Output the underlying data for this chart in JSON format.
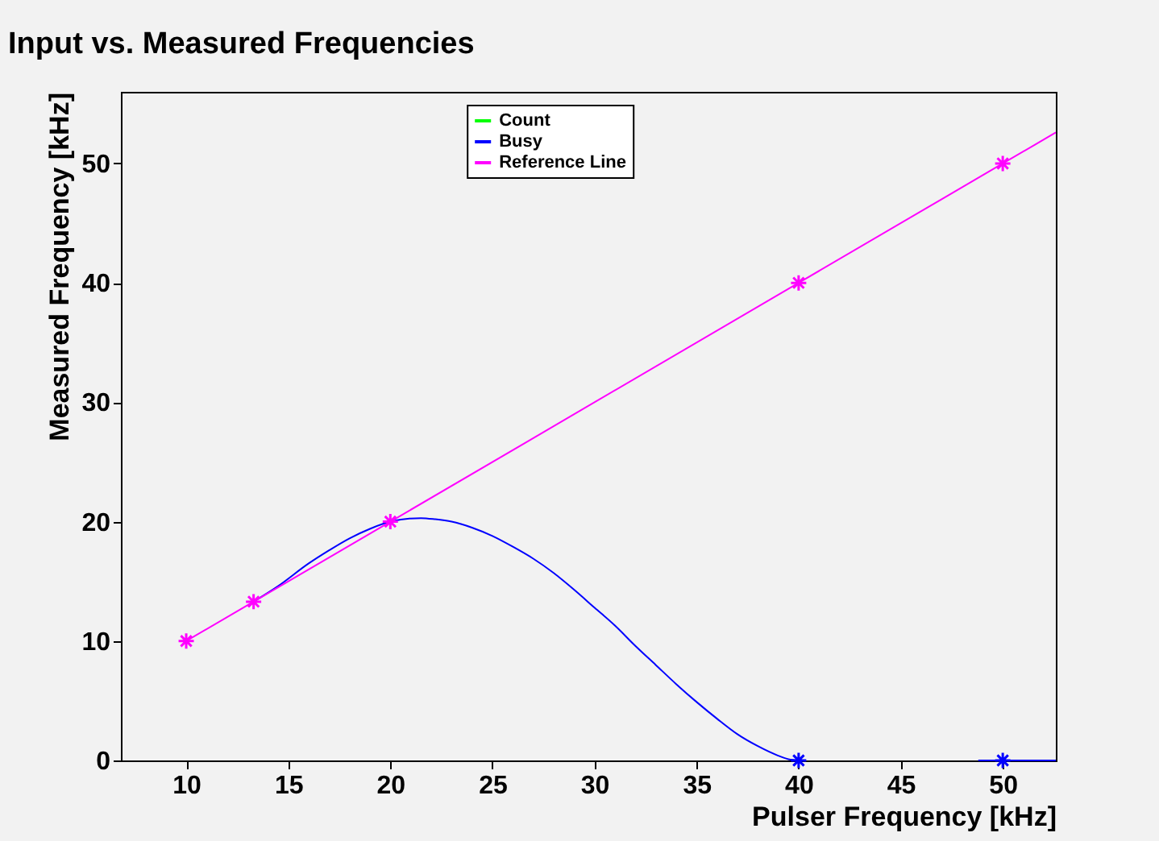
{
  "chart_data": {
    "type": "line",
    "title": "Input vs. Measured Frequencies",
    "xlabel": "Pulser Frequency [kHz]",
    "ylabel": "Measured Frequency [kHz]",
    "xlim": [
      6.8,
      52.6
    ],
    "ylim": [
      0,
      56
    ],
    "xticks": [
      10,
      15,
      20,
      25,
      30,
      35,
      40,
      45,
      50
    ],
    "yticks": [
      0,
      10,
      20,
      30,
      40,
      50
    ],
    "grid": false,
    "legend": "top",
    "line_style": "solid",
    "series": [
      {
        "name": "Count",
        "color": "#00ff00",
        "marker": "cross"
      },
      {
        "name": "Busy",
        "color": "#0000ff",
        "x": [
          13.3,
          14.5,
          16,
          17,
          18,
          19,
          20,
          21.5,
          22.2,
          23,
          24,
          25,
          26,
          27,
          28,
          29,
          30,
          31,
          32,
          33,
          34,
          35,
          36,
          37,
          38,
          39,
          39.5,
          40,
          44,
          48.8,
          50,
          52.6
        ],
        "values": [
          13.3,
          14.6,
          16.5,
          17.6,
          18.6,
          19.4,
          20,
          20.3,
          20.2,
          20,
          19.5,
          18.8,
          17.9,
          16.9,
          15.7,
          14.3,
          12.8,
          11.3,
          9.6,
          8,
          6.4,
          4.9,
          3.5,
          2.2,
          1.2,
          0.4,
          0.1,
          0,
          null,
          0,
          0,
          0
        ],
        "marker": "none"
      },
      {
        "type": "scatter",
        "color": "#0000ff",
        "x": [
          40,
          50
        ],
        "values": [
          0,
          0
        ],
        "marker": "cross"
      },
      {
        "name": "Reference Line",
        "color": "#ff00ff",
        "x": [
          10,
          13.3,
          20,
          40,
          50,
          52.6
        ],
        "values": [
          10,
          13.3,
          20,
          40,
          50,
          52.6
        ],
        "marker": "none"
      },
      {
        "type": "scatter",
        "color": "#ff00ff",
        "x": [
          10,
          13.3,
          20,
          40,
          50
        ],
        "values": [
          10,
          13.3,
          20,
          40,
          50
        ],
        "marker": "cross"
      }
    ]
  }
}
